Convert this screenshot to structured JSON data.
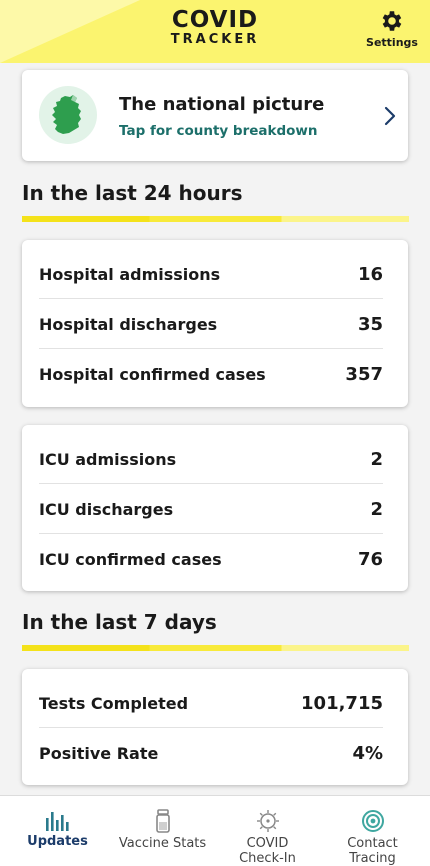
{
  "header": {
    "logo_line1": "COVID",
    "logo_line2": "TRACKER",
    "settings_label": "Settings",
    "settings_icon": "gear-icon"
  },
  "national": {
    "title": "The national picture",
    "subtitle": "Tap for county breakdown",
    "map_icon": "ireland-map-icon",
    "chevron_icon": "chevron-right-icon"
  },
  "section_24h": {
    "title": "In the last 24 hours",
    "hospital": [
      {
        "label": "Hospital admissions",
        "value": "16"
      },
      {
        "label": "Hospital discharges",
        "value": "35"
      },
      {
        "label": "Hospital confirmed cases",
        "value": "357"
      }
    ],
    "icu": [
      {
        "label": "ICU admissions",
        "value": "2"
      },
      {
        "label": "ICU discharges",
        "value": "2"
      },
      {
        "label": "ICU confirmed cases",
        "value": "76"
      }
    ]
  },
  "section_7d": {
    "title": "In the last 7 days",
    "stats": [
      {
        "label": "Tests Completed",
        "value": "101,715"
      },
      {
        "label": "Positive Rate",
        "value": "4%"
      }
    ]
  },
  "nav": {
    "items": [
      {
        "label": "Updates",
        "icon": "bar-chart-icon",
        "active": true
      },
      {
        "label": "Vaccine Stats",
        "icon": "vial-icon",
        "active": false
      },
      {
        "label": "COVID Check-In",
        "icon": "virus-icon",
        "active": false
      },
      {
        "label": "Contact Tracing",
        "icon": "contact-tracing-icon",
        "active": false
      }
    ]
  },
  "colors": {
    "header_bg": "#fbf46f",
    "accent_yellow": "#f4e21a",
    "link_teal": "#1c6f6a",
    "active_nav": "#1c3c6a"
  }
}
